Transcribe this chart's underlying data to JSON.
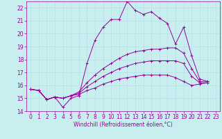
{
  "xlabel": "Windchill (Refroidissement éolien,°C)",
  "background_color": "#c8eef0",
  "grid_color": "#b0dde0",
  "line_color": "#990099",
  "xlim": [
    -0.5,
    23.5
  ],
  "ylim": [
    14,
    22.5
  ],
  "yticks": [
    14,
    15,
    16,
    17,
    18,
    19,
    20,
    21,
    22
  ],
  "xticks": [
    0,
    1,
    2,
    3,
    4,
    5,
    6,
    7,
    8,
    9,
    10,
    11,
    12,
    13,
    14,
    15,
    16,
    17,
    18,
    19,
    20,
    21,
    22,
    23
  ],
  "series": [
    [
      15.7,
      15.6,
      14.9,
      15.1,
      14.3,
      15.0,
      15.2,
      17.7,
      19.5,
      20.5,
      21.1,
      21.1,
      22.5,
      21.8,
      21.5,
      21.7,
      21.2,
      20.8,
      19.2,
      20.5,
      18.3,
      16.5,
      16.3
    ],
    [
      15.7,
      15.6,
      14.9,
      15.1,
      15.0,
      15.2,
      15.5,
      16.2,
      16.8,
      17.3,
      17.7,
      18.1,
      18.4,
      18.6,
      18.7,
      18.8,
      18.8,
      18.9,
      18.9,
      18.5,
      17.3,
      16.3,
      16.3
    ],
    [
      15.7,
      15.6,
      14.9,
      15.1,
      15.0,
      15.2,
      15.4,
      15.9,
      16.3,
      16.7,
      17.0,
      17.3,
      17.5,
      17.7,
      17.8,
      17.9,
      17.9,
      17.9,
      17.9,
      17.7,
      16.7,
      16.2,
      16.2
    ],
    [
      15.7,
      15.6,
      14.9,
      15.1,
      15.0,
      15.2,
      15.3,
      15.6,
      15.8,
      16.1,
      16.3,
      16.5,
      16.6,
      16.7,
      16.8,
      16.8,
      16.8,
      16.8,
      16.6,
      16.3,
      16.0,
      16.1,
      16.2
    ]
  ],
  "xlabel_fontsize": 5.5,
  "tick_fontsize": 5.5,
  "linewidth": 0.7,
  "markersize": 3.0
}
